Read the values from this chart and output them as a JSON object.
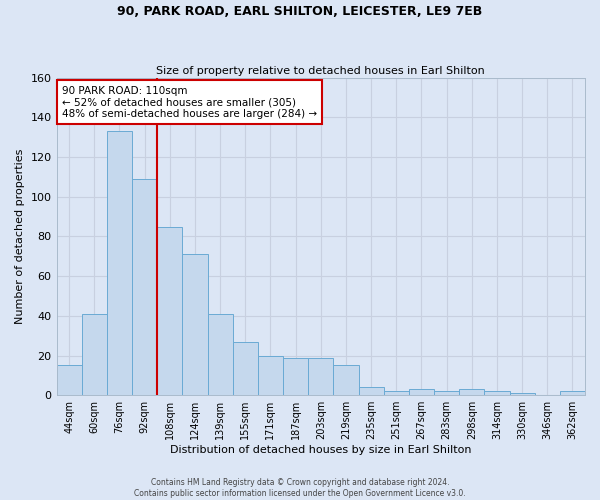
{
  "title1": "90, PARK ROAD, EARL SHILTON, LEICESTER, LE9 7EB",
  "title2": "Size of property relative to detached houses in Earl Shilton",
  "xlabel": "Distribution of detached houses by size in Earl Shilton",
  "ylabel": "Number of detached properties",
  "categories": [
    "44sqm",
    "60sqm",
    "76sqm",
    "92sqm",
    "108sqm",
    "124sqm",
    "139sqm",
    "155sqm",
    "171sqm",
    "187sqm",
    "203sqm",
    "219sqm",
    "235sqm",
    "251sqm",
    "267sqm",
    "283sqm",
    "298sqm",
    "314sqm",
    "330sqm",
    "346sqm",
    "362sqm"
  ],
  "values": [
    15,
    41,
    133,
    109,
    85,
    71,
    41,
    27,
    20,
    19,
    19,
    15,
    4,
    2,
    3,
    2,
    3,
    2,
    1,
    0,
    2
  ],
  "bar_color": "#c5d8ed",
  "bar_edge_color": "#6aaad4",
  "bar_width": 1.0,
  "vline_x": 3.5,
  "annotation_text": "90 PARK ROAD: 110sqm\n← 52% of detached houses are smaller (305)\n48% of semi-detached houses are larger (284) →",
  "annotation_box_color": "white",
  "annotation_box_edge_color": "#cc0000",
  "vline_color": "#cc0000",
  "ylim": [
    0,
    160
  ],
  "yticks": [
    0,
    20,
    40,
    60,
    80,
    100,
    120,
    140,
    160
  ],
  "grid_color": "#c8d0e0",
  "bg_color": "#dce6f5",
  "title1_fontsize": 9,
  "title2_fontsize": 8,
  "footer1": "Contains HM Land Registry data © Crown copyright and database right 2024.",
  "footer2": "Contains public sector information licensed under the Open Government Licence v3.0."
}
